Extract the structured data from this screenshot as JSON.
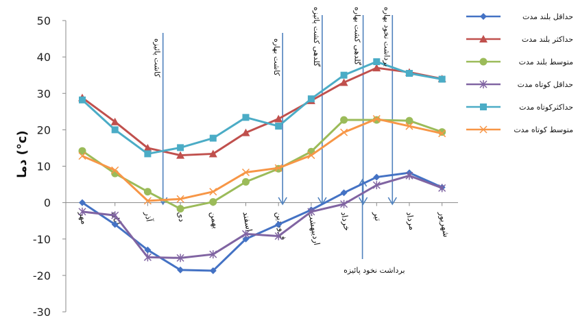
{
  "chart_data": {
    "type": "line",
    "ylabel": "دما (°c)",
    "ylim": [
      -30,
      50
    ],
    "yticks": [
      50,
      40,
      30,
      20,
      10,
      0,
      -10,
      -20,
      -30
    ],
    "grid": false,
    "legend_position": "right",
    "categories": [
      "مهر",
      "آبان",
      "آذر",
      "دی",
      "بهمن",
      "اسفند",
      "فروردین",
      "اردیبهشت",
      "خرداد",
      "تیر",
      "مرداد",
      "شهریور"
    ],
    "series": [
      {
        "name": "حداقل بلند مدت",
        "color": "#4472C4",
        "marker": "diamond",
        "values": [
          0,
          -6,
          -13,
          -18.5,
          -18.7,
          -10,
          -6,
          -2,
          2.7,
          7,
          8.2,
          4.2
        ]
      },
      {
        "name": "حداکثر بلند مدت",
        "color": "#C0504D",
        "marker": "triangle",
        "values": [
          28.8,
          22.2,
          15,
          13,
          13.4,
          19.2,
          23,
          28,
          33,
          37,
          35.8,
          34
        ]
      },
      {
        "name": "متوسط بلند مدت",
        "color": "#9BBB59",
        "marker": "circle",
        "values": [
          14.2,
          8,
          3,
          -1.7,
          0.2,
          5.7,
          9.3,
          14,
          22.7,
          22.7,
          22.5,
          19.4
        ]
      },
      {
        "name": "حداقل کوتاه مدت",
        "color": "#8064A2",
        "marker": "star",
        "values": [
          -2.5,
          -3.5,
          -15,
          -15.2,
          -14.2,
          -8.6,
          -9.2,
          -2.5,
          -0.4,
          4.8,
          7.4,
          4
        ]
      },
      {
        "name": "حداکثرکوتاه مدت",
        "color": "#4BACC6",
        "marker": "square",
        "values": [
          28.2,
          20,
          13.4,
          15.1,
          17.7,
          23.4,
          21,
          28.5,
          35,
          38.7,
          35.5,
          33.9
        ]
      },
      {
        "name": "متوسط کوتاه مدت",
        "color": "#F79646",
        "marker": "x",
        "values": [
          12.8,
          8.9,
          0.5,
          1,
          3,
          8.3,
          9.5,
          13,
          19.3,
          23,
          21,
          19
        ]
      }
    ],
    "annotations": [
      {
        "text": "کاشت پائیزه",
        "month": "آبان",
        "arrow": "down"
      },
      {
        "text": "کاشت بهاره",
        "month": "فروردین",
        "arrow": "down"
      },
      {
        "text": "گلدهی کشت پائیزه",
        "month": "اردیبهشت",
        "arrow": "down"
      },
      {
        "text": "گلدهی کشت بهاره",
        "month": "خرداد",
        "arrow": "down"
      },
      {
        "text": "برداشت نخود بهاره",
        "month": "تیر",
        "arrow": "down"
      },
      {
        "text": "برداشت نخود پائیزه",
        "month": "خرداد",
        "arrow": "up"
      }
    ]
  }
}
